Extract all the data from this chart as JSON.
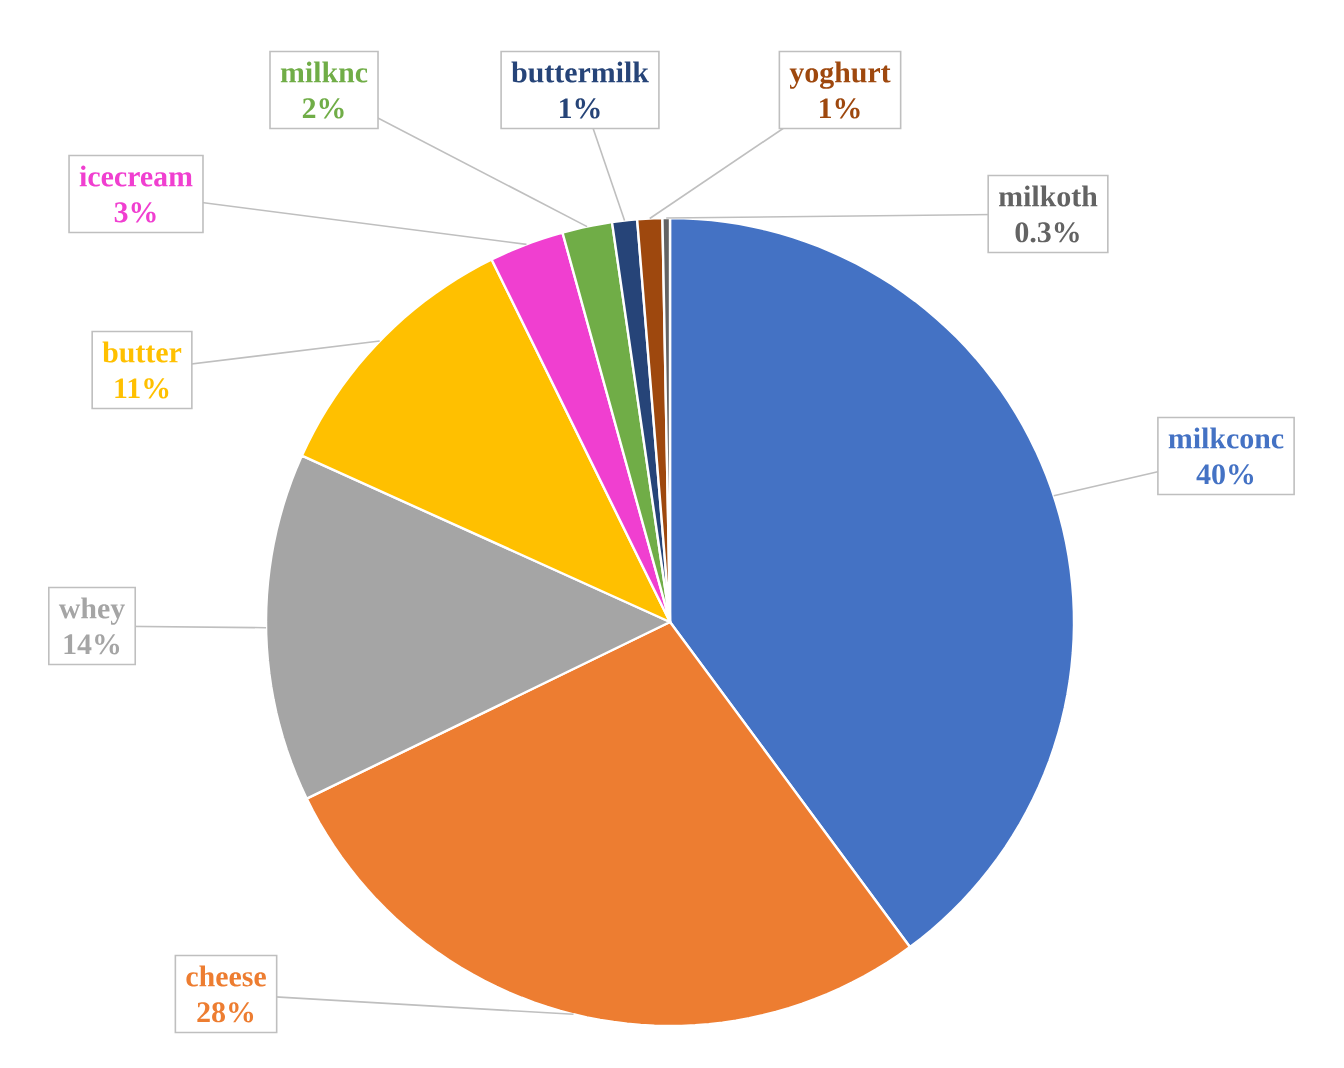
{
  "chart_data": {
    "type": "pie",
    "value_labels": [
      "40%",
      "28%",
      "14%",
      "11%",
      "3%",
      "2%",
      "1%",
      "1%",
      "0.3%"
    ],
    "categories": [
      "milkconc",
      "cheese",
      "whey",
      "butter",
      "icecream",
      "milknc",
      "buttermilk",
      "yoghurt",
      "milkoth"
    ],
    "values": [
      40,
      28,
      14,
      11,
      3,
      2,
      1,
      1,
      0.3
    ],
    "colors": [
      "#4472c4",
      "#ed7d31",
      "#a5a5a5",
      "#ffc000",
      "#f03fd0",
      "#70ad47",
      "#264478",
      "#9e480e",
      "#636363"
    ]
  }
}
